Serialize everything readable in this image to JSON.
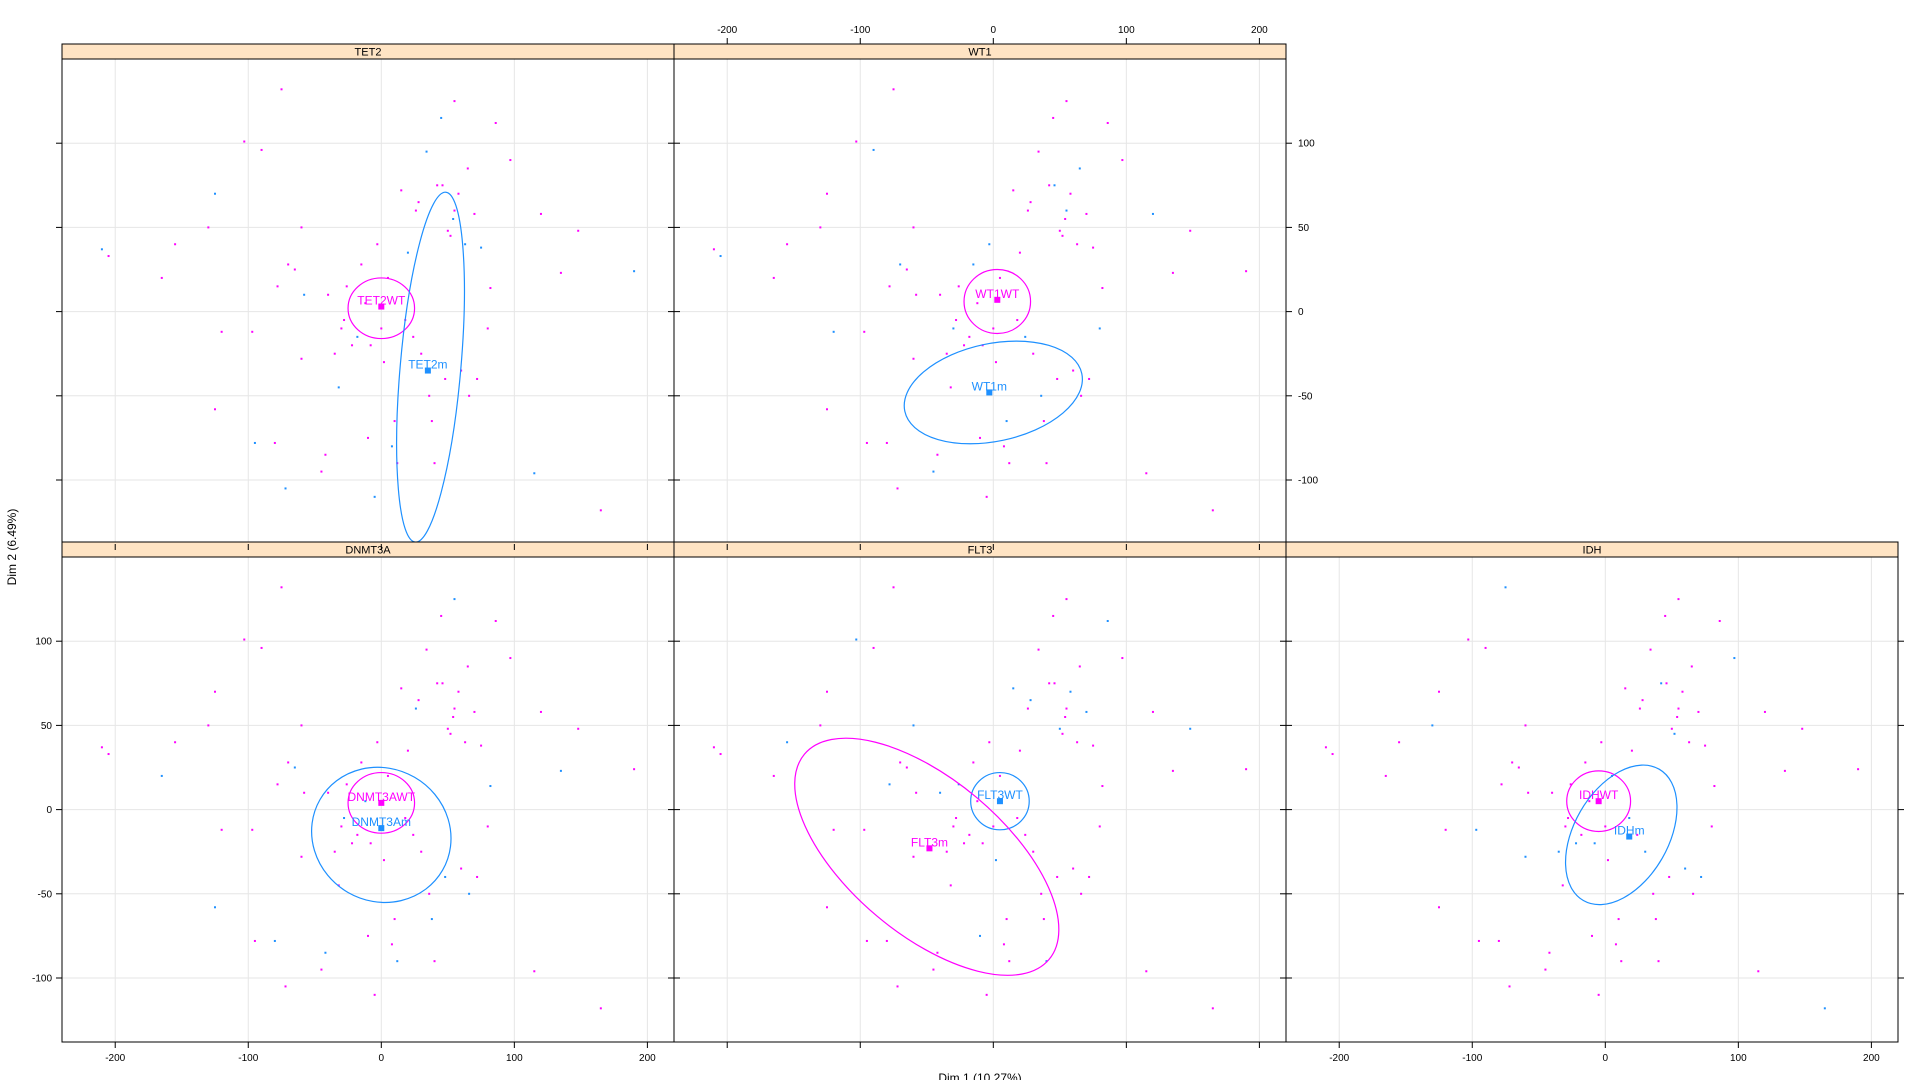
{
  "chart_data": {
    "type": "scatter",
    "xlabel": "Dim 1 (10.27%)",
    "ylabel": "Dim 2 (6.49%)",
    "xlim": [
      -240,
      220
    ],
    "ylim": [
      -138,
      150
    ],
    "x_ticks": [
      -200,
      -100,
      0,
      100,
      200
    ],
    "y_ticks": [
      -100,
      -50,
      0,
      50,
      100
    ],
    "grid": true,
    "colors": {
      "wt": "#ff00ff",
      "mut": "#1e90ff",
      "strip": "#ffe4c4",
      "grid": "#e6e6e6"
    },
    "panels": [
      {
        "title": "TET2",
        "groups": [
          {
            "label": "TET2WT",
            "color": "wt",
            "center": [
              0,
              3
            ],
            "ellipse": {
              "cx": 0,
              "cy": 2,
              "rx": 25,
              "ry": 18,
              "angle": 0
            }
          },
          {
            "label": "TET2m",
            "color": "mut",
            "center": [
              35,
              -35
            ],
            "ellipse": {
              "cx": 37,
              "cy": -33,
              "rx": 132,
              "ry": 18,
              "angle": 85
            }
          }
        ]
      },
      {
        "title": "WT1",
        "groups": [
          {
            "label": "WT1WT",
            "color": "wt",
            "center": [
              3,
              7
            ],
            "ellipse": {
              "cx": 3,
              "cy": 6,
              "rx": 25,
              "ry": 19,
              "angle": 0
            }
          },
          {
            "label": "WT1m",
            "color": "mut",
            "center": [
              -3,
              -48
            ],
            "ellipse": {
              "cx": 0,
              "cy": -48,
              "rx": 68,
              "ry": 29,
              "angle": 12
            }
          }
        ]
      },
      {
        "title": "DNMT3A",
        "groups": [
          {
            "label": "DNMT3AWT",
            "color": "wt",
            "center": [
              0,
              4
            ],
            "ellipse": {
              "cx": 0,
              "cy": 4,
              "rx": 25,
              "ry": 18,
              "angle": 0
            }
          },
          {
            "label": "DNMT3Am",
            "color": "mut",
            "center": [
              0,
              -11
            ],
            "ellipse": {
              "cx": 0,
              "cy": -15,
              "rx": 50,
              "ry": 42,
              "angle": 60
            }
          }
        ]
      },
      {
        "title": "FLT3",
        "groups": [
          {
            "label": "FLT3WT",
            "color": "mut",
            "center": [
              5,
              5
            ],
            "ellipse": {
              "cx": 5,
              "cy": 5,
              "rx": 22,
              "ry": 17,
              "angle": 0
            }
          },
          {
            "label": "FLT3m",
            "color": "wt",
            "center": [
              -48,
              -23
            ],
            "ellipse": {
              "cx": -50,
              "cy": -28,
              "rx": 120,
              "ry": 46,
              "angle": -40
            }
          }
        ]
      },
      {
        "title": "IDH",
        "groups": [
          {
            "label": "IDHWT",
            "color": "wt",
            "center": [
              -5,
              5
            ],
            "ellipse": {
              "cx": -5,
              "cy": 5,
              "rx": 24,
              "ry": 18,
              "angle": 0
            }
          },
          {
            "label": "IDHm",
            "color": "mut",
            "center": [
              18,
              -16
            ],
            "ellipse": {
              "cx": 12,
              "cy": -15,
              "rx": 57,
              "ry": 28,
              "angle": 60
            }
          }
        ]
      }
    ],
    "points": [
      [
        -210,
        37
      ],
      [
        -205,
        33
      ],
      [
        -165,
        20
      ],
      [
        -155,
        40
      ],
      [
        -130,
        50
      ],
      [
        -125,
        70
      ],
      [
        -120,
        -12
      ],
      [
        -125,
        -58
      ],
      [
        -103,
        101
      ],
      [
        -97,
        -12
      ],
      [
        -95,
        -78
      ],
      [
        -90,
        96
      ],
      [
        -80,
        -78
      ],
      [
        -78,
        15
      ],
      [
        -75,
        132
      ],
      [
        -72,
        -105
      ],
      [
        -70,
        28
      ],
      [
        -65,
        25
      ],
      [
        -60,
        50
      ],
      [
        -60,
        -28
      ],
      [
        -58,
        10
      ],
      [
        -45,
        -95
      ],
      [
        -42,
        -85
      ],
      [
        -40,
        10
      ],
      [
        -35,
        -25
      ],
      [
        -32,
        -45
      ],
      [
        -30,
        -10
      ],
      [
        -28,
        -5
      ],
      [
        -26,
        15
      ],
      [
        -22,
        -20
      ],
      [
        -18,
        -15
      ],
      [
        -15,
        28
      ],
      [
        -12,
        5
      ],
      [
        -10,
        -75
      ],
      [
        -8,
        -20
      ],
      [
        -5,
        -110
      ],
      [
        -3,
        40
      ],
      [
        0,
        -10
      ],
      [
        2,
        -30
      ],
      [
        5,
        20
      ],
      [
        8,
        -80
      ],
      [
        10,
        -65
      ],
      [
        12,
        -90
      ],
      [
        15,
        72
      ],
      [
        18,
        -5
      ],
      [
        20,
        35
      ],
      [
        24,
        -15
      ],
      [
        26,
        60
      ],
      [
        28,
        65
      ],
      [
        30,
        -25
      ],
      [
        34,
        95
      ],
      [
        36,
        -50
      ],
      [
        38,
        -65
      ],
      [
        40,
        -90
      ],
      [
        42,
        75
      ],
      [
        45,
        115
      ],
      [
        46,
        75
      ],
      [
        48,
        -40
      ],
      [
        50,
        48
      ],
      [
        52,
        45
      ],
      [
        54,
        55
      ],
      [
        55,
        60
      ],
      [
        55,
        125
      ],
      [
        58,
        70
      ],
      [
        60,
        -35
      ],
      [
        63,
        40
      ],
      [
        65,
        85
      ],
      [
        66,
        -50
      ],
      [
        70,
        58
      ],
      [
        72,
        -40
      ],
      [
        75,
        38
      ],
      [
        80,
        -10
      ],
      [
        82,
        14
      ],
      [
        86,
        112
      ],
      [
        97,
        90
      ],
      [
        115,
        -96
      ],
      [
        120,
        58
      ],
      [
        135,
        23
      ],
      [
        148,
        48
      ],
      [
        165,
        -118
      ],
      [
        190,
        24
      ]
    ]
  }
}
